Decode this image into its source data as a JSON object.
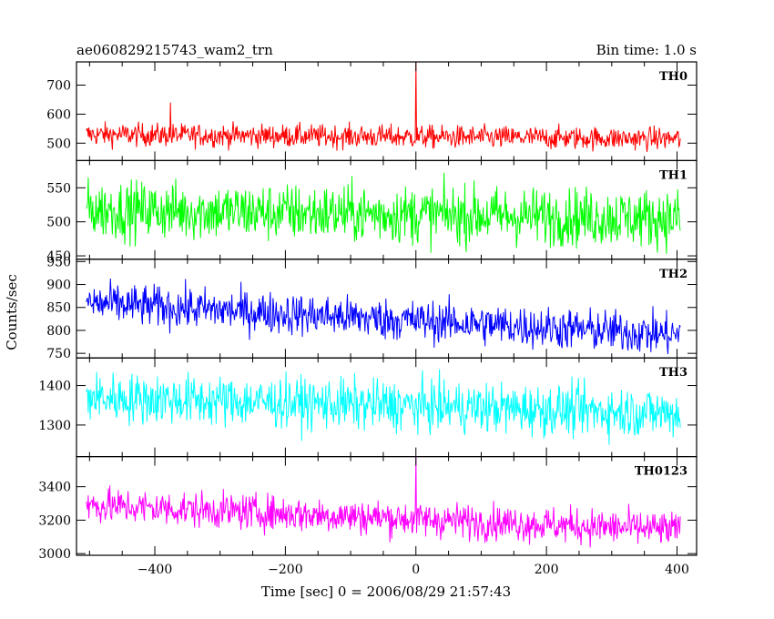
{
  "chart_data": {
    "type": "line",
    "title": "ae060829215743_wam2_trn",
    "subtitle": "Bin time: 1.0 s",
    "xlabel": "Time [sec] 0 = 2006/08/29 21:57:43",
    "ylabel": "Counts/sec",
    "xlim": [
      -520,
      430
    ],
    "xticks": [
      -400,
      -200,
      0,
      200,
      400
    ],
    "data_range": [
      -505,
      405
    ],
    "bin_time_s": 1.0,
    "panels": [
      {
        "name": "TH0",
        "color": "#ff0000",
        "ylim": [
          440,
          780
        ],
        "yticks": [
          500,
          600,
          700
        ],
        "level_start": 530,
        "level_end": 515,
        "noise": 28,
        "spikes": [
          {
            "x": 0,
            "y": 780
          },
          {
            "x": -376,
            "y": 640
          }
        ]
      },
      {
        "name": "TH1",
        "color": "#00ff00",
        "ylim": [
          445,
          590
        ],
        "yticks": [
          450,
          500,
          550
        ],
        "level_start": 518,
        "level_end": 505,
        "noise": 30,
        "spikes": []
      },
      {
        "name": "TH2",
        "color": "#0000ff",
        "ylim": [
          740,
          955
        ],
        "yticks": [
          750,
          800,
          850,
          900,
          950
        ],
        "level_start": 860,
        "level_end": 790,
        "noise": 32,
        "spikes": []
      },
      {
        "name": "TH3",
        "color": "#00ffff",
        "ylim": [
          1220,
          1470
        ],
        "yticks": [
          1300,
          1400
        ],
        "level_start": 1370,
        "level_end": 1330,
        "noise": 45,
        "spikes": []
      },
      {
        "name": "TH0123",
        "color": "#ff00ff",
        "ylim": [
          2990,
          3580
        ],
        "yticks": [
          3000,
          3200,
          3400
        ],
        "level_start": 3290,
        "level_end": 3140,
        "noise": 75,
        "spikes": [
          {
            "x": 0,
            "y": 3580
          }
        ]
      }
    ]
  }
}
